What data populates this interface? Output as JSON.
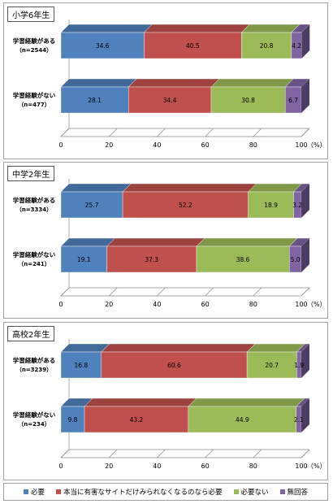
{
  "chart_data": [
    {
      "type": "bar",
      "orientation": "horizontal",
      "stacked": true,
      "title": "小学6年生",
      "categories": [
        "学習経験がある（n=2544）",
        "学習経験がない（n=477）"
      ],
      "category_lines": [
        [
          "学習経験がある",
          "（n=2544）"
        ],
        [
          "学習経験がない",
          "（n=477）"
        ]
      ],
      "series": [
        {
          "name": "必要",
          "values": [
            34.6,
            28.1
          ]
        },
        {
          "name": "本当に有害なサイトだけみられなくなるのなら必要",
          "values": [
            40.5,
            34.4
          ]
        },
        {
          "name": "必要ない",
          "values": [
            20.8,
            30.8
          ]
        },
        {
          "name": "無回答",
          "values": [
            4.2,
            6.7
          ]
        }
      ],
      "xlim": [
        0,
        100
      ],
      "xticks": [
        "0",
        "20",
        "40",
        "60",
        "80",
        "100"
      ],
      "unit": "（%）"
    },
    {
      "type": "bar",
      "orientation": "horizontal",
      "stacked": true,
      "title": "中学2年生",
      "categories": [
        "学習経験がある（n=3334）",
        "学習経験がない（n=241）"
      ],
      "category_lines": [
        [
          "学習経験がある",
          "（n=3334）"
        ],
        [
          "学習経験がない",
          "（n=241）"
        ]
      ],
      "series": [
        {
          "name": "必要",
          "values": [
            25.7,
            19.1
          ]
        },
        {
          "name": "本当に有害なサイトだけみられなくなるのなら必要",
          "values": [
            52.2,
            37.3
          ]
        },
        {
          "name": "必要ない",
          "values": [
            18.9,
            38.6
          ]
        },
        {
          "name": "無回答",
          "values": [
            3.2,
            5.0
          ]
        }
      ],
      "labels": [
        [
          "25.7",
          "19.1"
        ],
        [
          "52.2",
          "37.3"
        ],
        [
          "18.9",
          "38.6"
        ],
        [
          "3.2",
          "5.0"
        ]
      ],
      "xlim": [
        0,
        100
      ],
      "xticks": [
        "0",
        "20",
        "40",
        "60",
        "80",
        "100"
      ],
      "unit": "（%）"
    },
    {
      "type": "bar",
      "orientation": "horizontal",
      "stacked": true,
      "title": "高校2年生",
      "categories": [
        "学習経験がある（n=3239）",
        "学習経験がない（n=234）"
      ],
      "category_lines": [
        [
          "学習経験がある",
          "（n=3239）"
        ],
        [
          "学習経験がない",
          "（n=234）"
        ]
      ],
      "series": [
        {
          "name": "必要",
          "values": [
            16.8,
            9.8
          ]
        },
        {
          "name": "本当に有害なサイトだけみられなくなるのなら必要",
          "values": [
            60.6,
            43.2
          ]
        },
        {
          "name": "必要ない",
          "values": [
            20.7,
            44.9
          ]
        },
        {
          "name": "無回答",
          "values": [
            1.9,
            2.1
          ]
        }
      ],
      "xlim": [
        0,
        100
      ],
      "xticks": [
        "0",
        "20",
        "40",
        "60",
        "80",
        "100"
      ],
      "unit": "（%）"
    }
  ],
  "colors": {
    "必要": "#4f81bd",
    "本当に有害なサイトだけみられなくなるのなら必要": "#c0504d",
    "必要ない": "#9bbb59",
    "無回答": "#8064a2"
  },
  "legend": {
    "items": [
      "必要",
      "本当に有害なサイトだけみられなくなるのなら必要",
      "必要ない",
      "無回答"
    ]
  }
}
